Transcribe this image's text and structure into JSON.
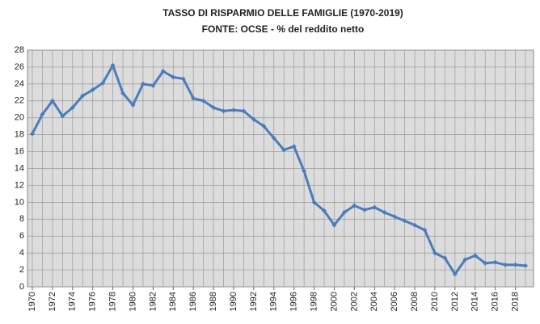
{
  "chart_data": {
    "type": "line",
    "title": "TASSO DI RISPARMIO DELLE FAMIGLIE (1970-2019)",
    "subtitle": "FONTE: OCSE - % del reddito netto",
    "x": [
      1970,
      1971,
      1972,
      1973,
      1974,
      1975,
      1976,
      1977,
      1978,
      1979,
      1980,
      1981,
      1982,
      1983,
      1984,
      1985,
      1986,
      1987,
      1988,
      1989,
      1990,
      1991,
      1992,
      1993,
      1994,
      1995,
      1996,
      1997,
      1998,
      1999,
      2000,
      2001,
      2002,
      2003,
      2004,
      2005,
      2006,
      2007,
      2008,
      2009,
      2010,
      2011,
      2012,
      2013,
      2014,
      2015,
      2016,
      2017,
      2018,
      2019
    ],
    "series": [
      {
        "name": "Tasso di risparmio",
        "color": "#4a7ebb",
        "values": [
          18.1,
          20.4,
          22.0,
          20.2,
          21.2,
          22.6,
          23.3,
          24.1,
          26.2,
          22.9,
          21.5,
          24.0,
          23.8,
          25.5,
          24.8,
          24.6,
          22.3,
          22.0,
          21.2,
          20.8,
          20.9,
          20.8,
          19.8,
          19.0,
          17.6,
          16.2,
          16.6,
          13.7,
          10.0,
          9.0,
          7.3,
          8.8,
          9.6,
          9.1,
          9.4,
          8.8,
          8.3,
          7.8,
          7.3,
          6.7,
          4.0,
          3.4,
          1.5,
          3.2,
          3.7,
          2.8,
          2.9,
          2.6,
          2.6,
          2.5
        ]
      }
    ],
    "xlim": [
      1970,
      2019
    ],
    "xticks": [
      1970,
      1972,
      1974,
      1976,
      1978,
      1980,
      1982,
      1984,
      1986,
      1988,
      1990,
      1992,
      1994,
      1996,
      1998,
      2000,
      2002,
      2004,
      2006,
      2008,
      2010,
      2012,
      2014,
      2016,
      2018
    ],
    "ylim": [
      0,
      28
    ],
    "yticks": [
      0,
      2,
      4,
      6,
      8,
      10,
      12,
      14,
      16,
      18,
      20,
      22,
      24,
      26,
      28
    ],
    "grid": true
  }
}
